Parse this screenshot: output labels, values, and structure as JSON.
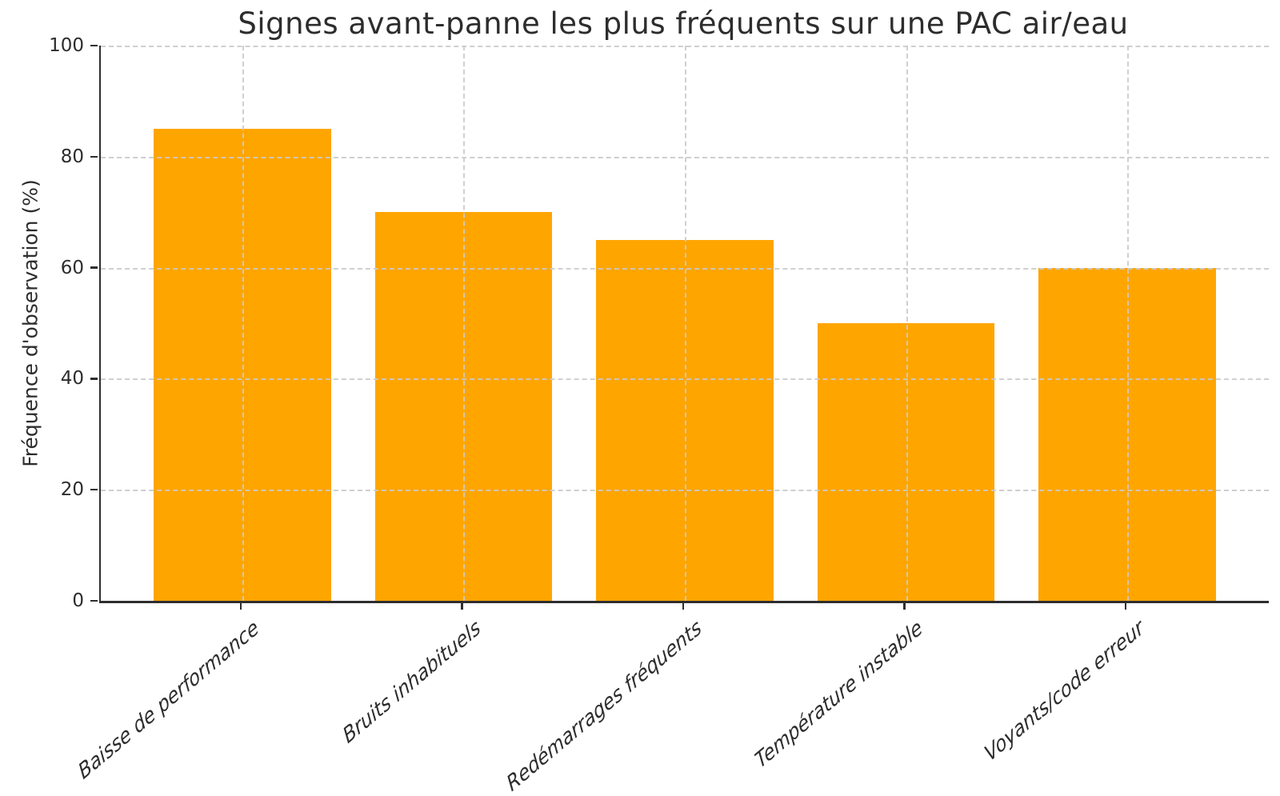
{
  "chart_data": {
    "type": "bar",
    "title": "Signes avant-panne les plus fréquents sur une PAC air/eau",
    "ylabel": "Fréquence d'observation (%)",
    "xlabel": "",
    "categories": [
      "Baisse de performance",
      "Bruits inhabituels",
      "Redémarrages fréquents",
      "Température instable",
      "Voyants/code erreur"
    ],
    "values": [
      85,
      70,
      65,
      50,
      60
    ],
    "ylim": [
      0,
      100
    ],
    "yticks": [
      0,
      20,
      40,
      60,
      80,
      100
    ],
    "bar_width_fraction": 0.8,
    "x_tick_label_rotation_deg": 40,
    "grid": {
      "visible": true,
      "style": "dashed",
      "axes": "both",
      "drawn_over_bars": true
    },
    "legend": {
      "visible": false
    },
    "style": {
      "bar_color": "#FFA500",
      "grid_color": "#d0d0d0",
      "axis_color": "#2e2e2e",
      "text_color": "#2d2d2d",
      "background_color": "#ffffff"
    }
  }
}
